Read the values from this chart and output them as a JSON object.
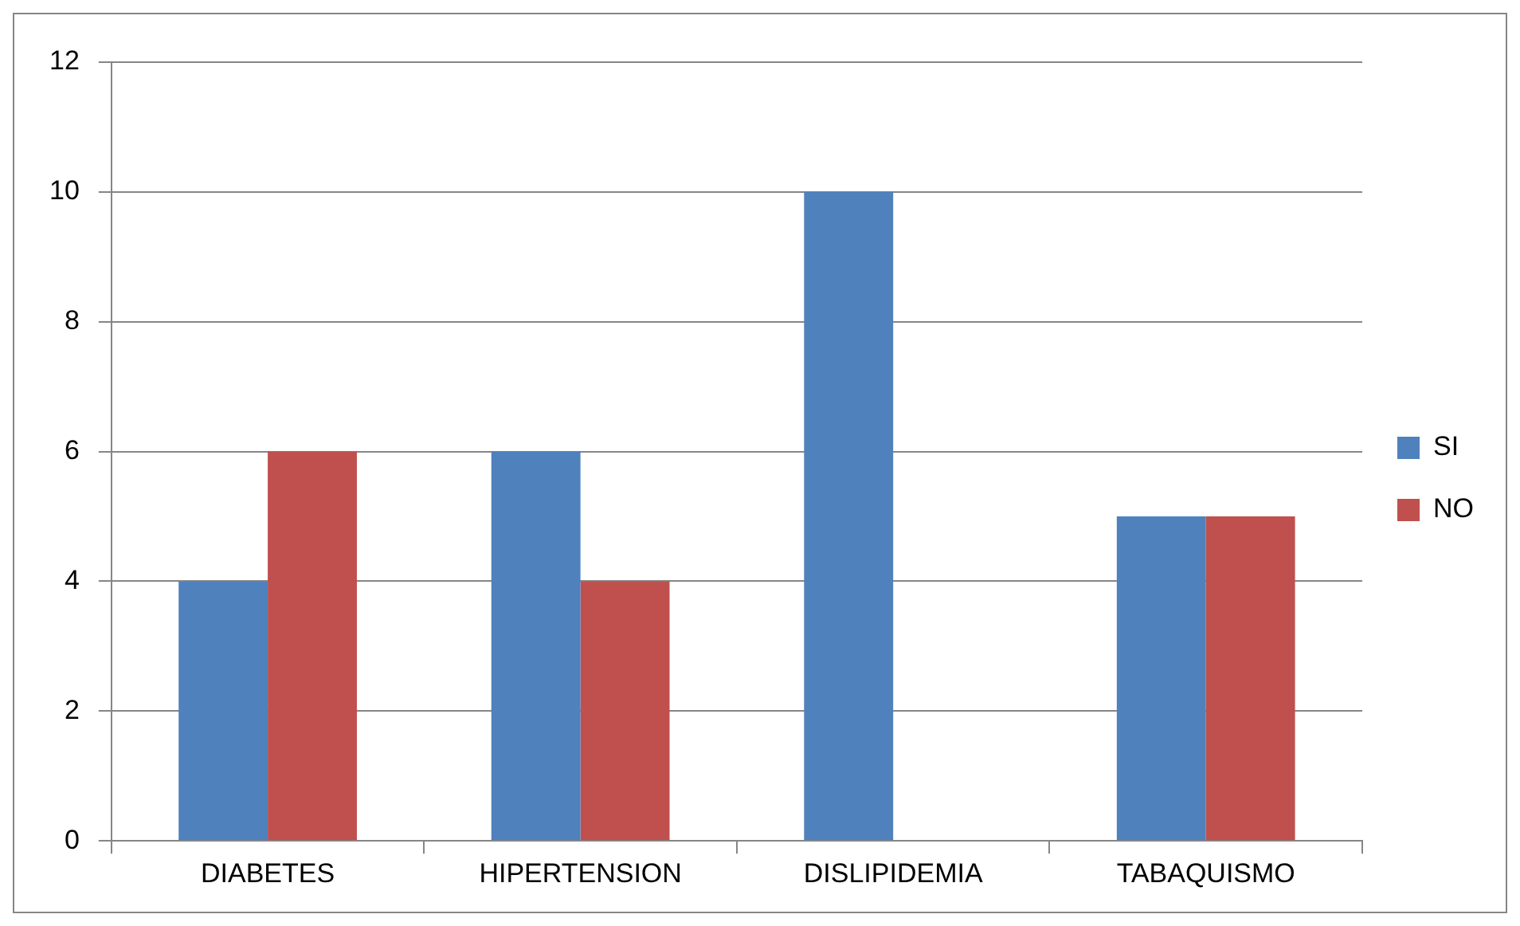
{
  "chart_data": {
    "type": "bar",
    "categories": [
      "DIABETES",
      "HIPERTENSION",
      "DISLIPIDEMIA",
      "TABAQUISMO"
    ],
    "series": [
      {
        "name": "SI",
        "color": "#4f81bd",
        "values": [
          4,
          6,
          10,
          5
        ]
      },
      {
        "name": "NO",
        "color": "#c0504d",
        "values": [
          6,
          4,
          0,
          5
        ]
      }
    ],
    "ylim": [
      0,
      12
    ],
    "yticks": [
      0,
      2,
      4,
      6,
      8,
      10,
      12
    ],
    "grid": "y",
    "legend": "right"
  }
}
